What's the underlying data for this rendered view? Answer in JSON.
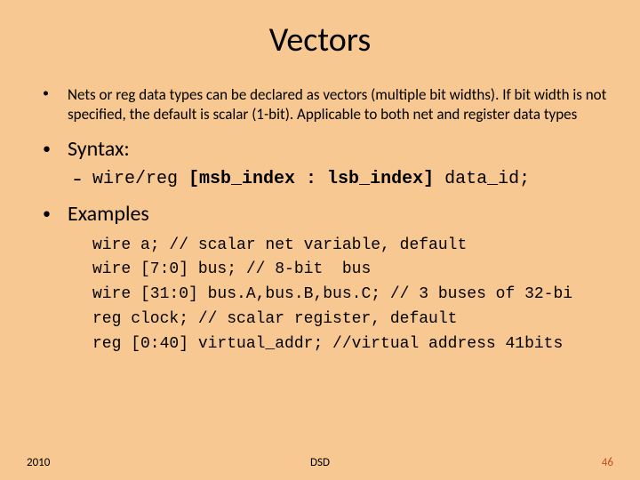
{
  "background_color": "#f7c891",
  "title": "Vectors",
  "intro": "Nets or reg data types can be declared as vectors (multiple bit widths). If bit width is not specified, the default is scalar (1-bit). Applicable to both net and register data types",
  "syntax_label": "Syntax:",
  "syntax_pre": "wire/reg ",
  "syntax_bold": "[msb_index : lsb_index]",
  "syntax_post": " data_id;",
  "examples_label": "Examples",
  "code": [
    "wire a; // scalar net variable, default",
    "wire [7:0] bus; // 8-bit  bus",
    "wire [31:0] bus.A,bus.B,bus.C; // 3 buses of 32-bi",
    "reg clock; // scalar register, default",
    "reg [0:40] virtual_addr; //virtual address 41bits"
  ],
  "footer": {
    "year": "2010",
    "center": "DSD",
    "page": "46"
  }
}
